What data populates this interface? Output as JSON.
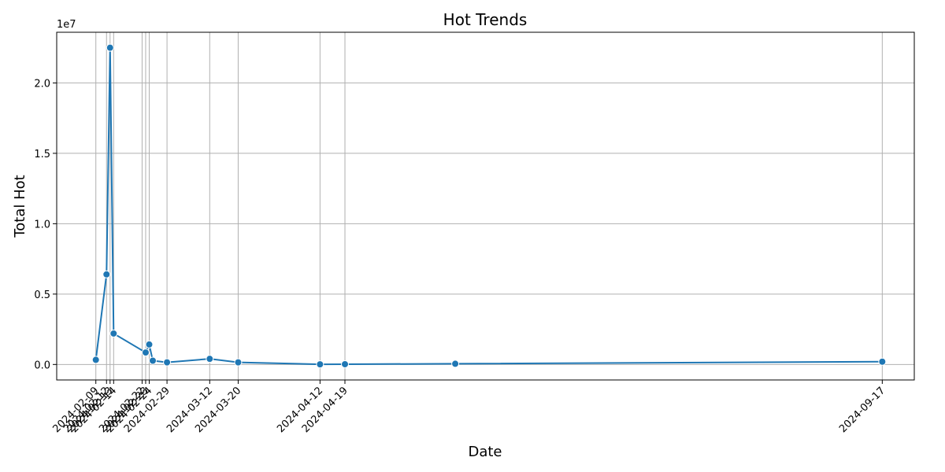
{
  "chart_data": {
    "type": "line",
    "title": "Hot Trends",
    "xlabel": "Date",
    "ylabel": "Total Hot",
    "y_offset_label": "1e7",
    "grid": true,
    "x_tick_labels": [
      "2024-02-09",
      "2024-02-12",
      "2024-02-13",
      "2024-02-14",
      "2024-02-22",
      "2024-02-23",
      "2024-02-24",
      "2024-02-29",
      "2024-03-12",
      "2024-03-20",
      "2024-04-12",
      "2024-04-19",
      "2024-09-17"
    ],
    "y_ticks": [
      0.0,
      0.5,
      1.0,
      1.5,
      2.0
    ],
    "y_tick_labels": [
      "0.0",
      "0.5",
      "1.0",
      "1.5",
      "2.0"
    ],
    "ylim": [
      -1100000,
      23600000
    ],
    "xlim": [
      "2024-01-29",
      "2024-09-26"
    ],
    "series": [
      {
        "x": [
          "2024-02-09",
          "2024-02-12",
          "2024-02-13",
          "2024-02-14",
          "2024-02-23",
          "2024-02-24",
          "2024-02-25",
          "2024-02-29",
          "2024-03-12",
          "2024-03-20",
          "2024-04-12",
          "2024-04-19",
          "2024-05-20",
          "2024-09-17"
        ],
        "y": [
          330000,
          6400000,
          22500000,
          2200000,
          850000,
          1420000,
          270000,
          150000,
          400000,
          150000,
          10000,
          20000,
          50000,
          200000
        ]
      }
    ]
  }
}
